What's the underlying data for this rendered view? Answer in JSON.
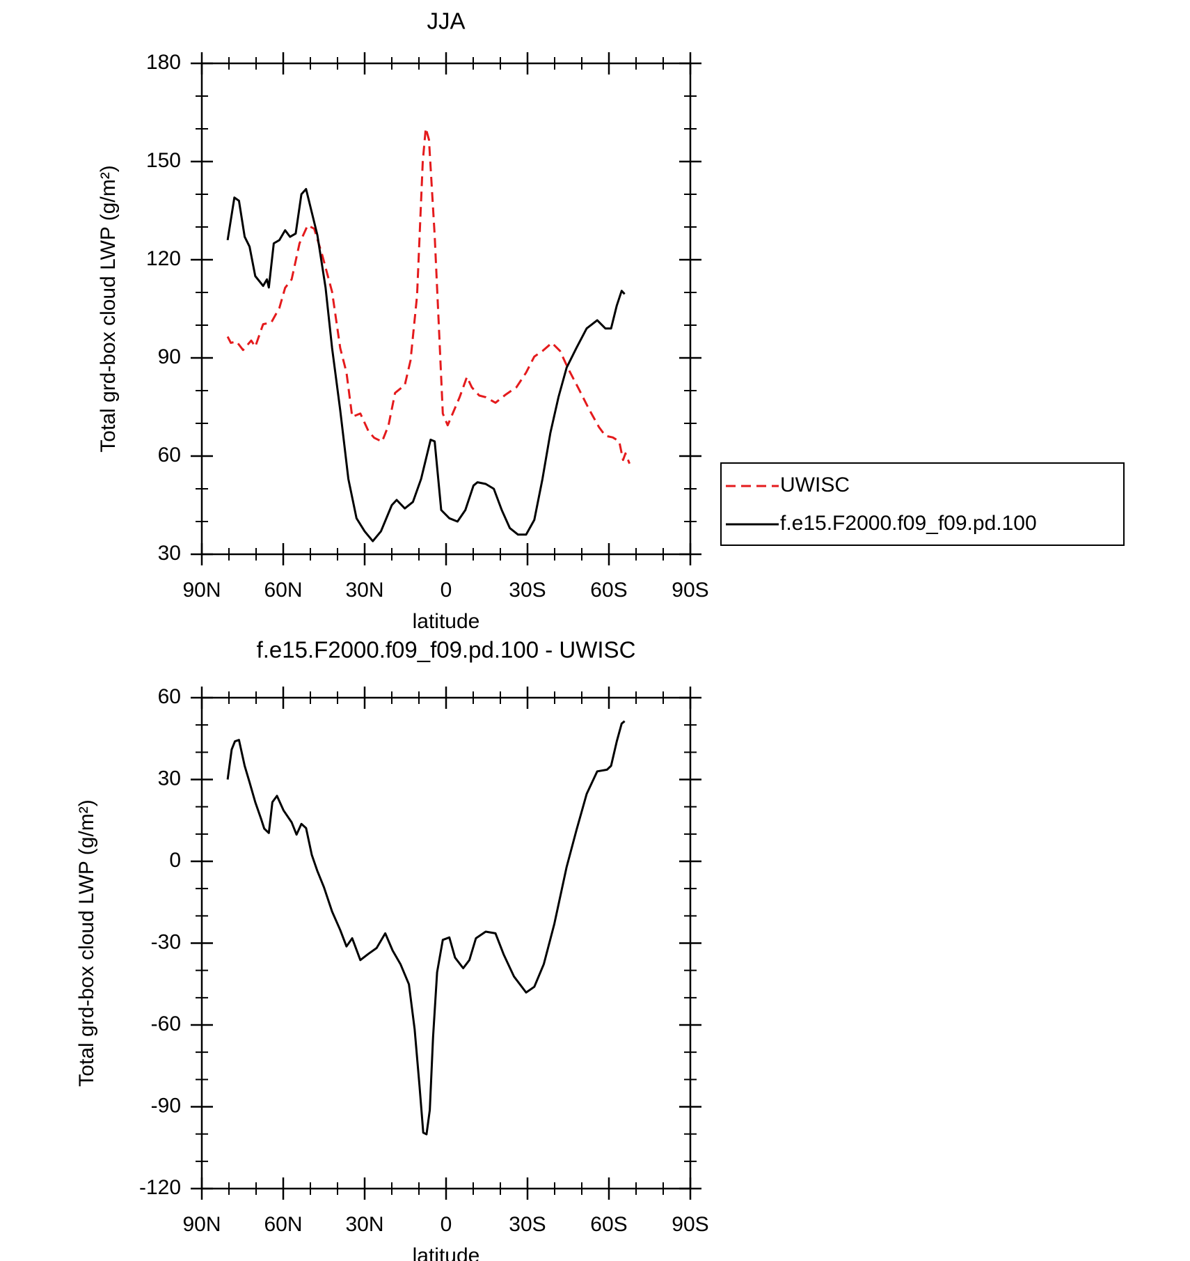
{
  "chart_data": [
    {
      "type": "line",
      "title": "JJA",
      "xlabel": "latitude",
      "ylabel": "Total grd-box cloud LWP (g/m²)",
      "xlim": [
        90,
        -90
      ],
      "xticks": [
        {
          "value": 90,
          "label": "90N"
        },
        {
          "value": 60,
          "label": "60N"
        },
        {
          "value": 30,
          "label": "30N"
        },
        0,
        {
          "value": -30,
          "label": "30S"
        },
        {
          "value": -60,
          "label": "60S"
        },
        {
          "value": -90,
          "label": "90S"
        }
      ],
      "ylim": [
        30,
        180
      ],
      "yticks": [
        30,
        60,
        90,
        120,
        150,
        180
      ],
      "legend": "right",
      "series": [
        {
          "name": "UWISC",
          "color": "#e41a1c",
          "dashed": true,
          "x": [
            80.5,
            79.3,
            77.2,
            74.8,
            71.8,
            70.3,
            67.4,
            64.4,
            61.4,
            59.3,
            56.9,
            54,
            51,
            48.6,
            45.6,
            42,
            39,
            36.7,
            34.6,
            31.6,
            28.6,
            26.5,
            23.6,
            21.2,
            18.8,
            15.2,
            13.1,
            10.7,
            8.6,
            7.5,
            6.3,
            4.2,
            2.7,
            1.2,
            -0.6,
            -2.7,
            -5,
            -7.7,
            -9.5,
            -12.2,
            -14.6,
            -18.2,
            -22,
            -25.9,
            -29.5,
            -32.5,
            -35.5,
            -39,
            -42,
            -45,
            -48.9,
            -52.7,
            -56.3,
            -58.7,
            -61.4,
            -63.8,
            -65.2,
            -66.1,
            -67.6
          ],
          "values": [
            96.5,
            94.6,
            95,
            92.4,
            95.3,
            93.4,
            100.3,
            100.8,
            105.3,
            111.4,
            114,
            125,
            130.5,
            129.5,
            121.3,
            110.2,
            93,
            85.5,
            72,
            73,
            67.6,
            65.6,
            64.4,
            69.4,
            79.3,
            81.7,
            89.2,
            109,
            150,
            160.2,
            156.7,
            127.5,
            100.3,
            73,
            69.4,
            73.5,
            78,
            84.2,
            81,
            78.5,
            78,
            76.3,
            78.8,
            81,
            85.5,
            90.4,
            92.1,
            94.6,
            92.1,
            86.7,
            80.5,
            74.3,
            68.9,
            66.2,
            65.7,
            64.5,
            58.8,
            60.8,
            57.7
          ]
        },
        {
          "name": "f.e15.F2000.f09_f09.pd.100",
          "color": "#000000",
          "dashed": false,
          "x": [
            80.5,
            78,
            76.3,
            74.2,
            72.4,
            70.3,
            67.4,
            66,
            65.3,
            63.5,
            61.4,
            59.3,
            57.5,
            55.4,
            53.3,
            51.6,
            49.5,
            47.4,
            44.4,
            42,
            39,
            36,
            33,
            30,
            27,
            24,
            20,
            18.2,
            15.2,
            12.2,
            9.2,
            5.7,
            4.2,
            1.8,
            -1.2,
            -4.2,
            -7.1,
            -10.1,
            -11.6,
            -14.6,
            -17.6,
            -20.5,
            -23.5,
            -26.5,
            -29.5,
            -32.5,
            -35.5,
            -38.4,
            -41.4,
            -44.4,
            -48,
            -51.8,
            -55.7,
            -58.7,
            -60.8,
            -62.9,
            -64.7,
            -65.8
          ],
          "values": [
            126,
            139,
            138,
            127,
            124,
            115,
            112,
            114,
            111.5,
            125,
            126,
            129,
            127,
            128,
            140,
            141.6,
            134.5,
            127.5,
            111.5,
            93,
            74,
            53,
            41,
            37,
            34,
            37,
            45,
            46.6,
            44,
            46,
            53,
            65,
            64.5,
            43.5,
            41,
            40,
            43.5,
            51,
            52,
            51.5,
            50,
            43.5,
            38,
            36,
            36,
            40.5,
            53,
            67,
            78,
            87,
            93,
            99,
            101.5,
            99,
            99,
            106,
            110.5,
            109.5
          ]
        }
      ]
    },
    {
      "type": "line",
      "title": "f.e15.F2000.f09_f09.pd.100 - UWISC",
      "xlabel": "latitude",
      "ylabel": "Total grd-box cloud LWP (g/m²)",
      "xlim": [
        90,
        -90
      ],
      "xticks": [
        {
          "value": 90,
          "label": "90N"
        },
        {
          "value": 60,
          "label": "60N"
        },
        {
          "value": 30,
          "label": "30N"
        },
        0,
        {
          "value": -30,
          "label": "30S"
        },
        {
          "value": -60,
          "label": "60S"
        },
        {
          "value": -90,
          "label": "90S"
        }
      ],
      "ylim": [
        -120,
        60
      ],
      "yticks": [
        -120,
        -90,
        -60,
        -30,
        0,
        30,
        60
      ],
      "series": [
        {
          "color": "#000000",
          "dashed": false,
          "x": [
            80.5,
            79,
            77.8,
            76.3,
            74.2,
            72.4,
            70.3,
            68.2,
            67,
            65.3,
            64,
            62.3,
            59.9,
            56.9,
            55.1,
            53.3,
            51.6,
            49.5,
            47.4,
            45,
            42,
            39,
            36.7,
            34.6,
            31.6,
            28.6,
            25.6,
            22.4,
            19.7,
            16.8,
            13.7,
            11.6,
            9.8,
            8.4,
            7.2,
            6,
            4.8,
            3.3,
            1.2,
            -1.2,
            -3.3,
            -6.3,
            -8.6,
            -11,
            -14.6,
            -18.2,
            -21.2,
            -25,
            -29.5,
            -32.5,
            -36,
            -39.9,
            -44.4,
            -48,
            -51.8,
            -55.7,
            -59.3,
            -60.8,
            -62.9,
            -64.7,
            -65.8
          ],
          "values": [
            30,
            41,
            44,
            44.5,
            35,
            29,
            21.7,
            15.7,
            12,
            10.4,
            21.7,
            24,
            18.7,
            14.3,
            9.8,
            13.7,
            12.2,
            2.4,
            -3.6,
            -9.5,
            -18.4,
            -25.2,
            -31.2,
            -28.2,
            -36.2,
            -33.9,
            -31.8,
            -26.4,
            -32.7,
            -37.7,
            -45.1,
            -61.5,
            -82.3,
            -99.5,
            -100.1,
            -91.2,
            -64.5,
            -40.7,
            -28.8,
            -27.9,
            -35.3,
            -39.2,
            -36.2,
            -28.2,
            -25.8,
            -26.4,
            -34.1,
            -42.2,
            -48.1,
            -46,
            -37.7,
            -22.9,
            -2.1,
            11.3,
            24.7,
            33,
            33.6,
            35,
            44,
            50.5,
            51.4
          ]
        }
      ]
    }
  ]
}
